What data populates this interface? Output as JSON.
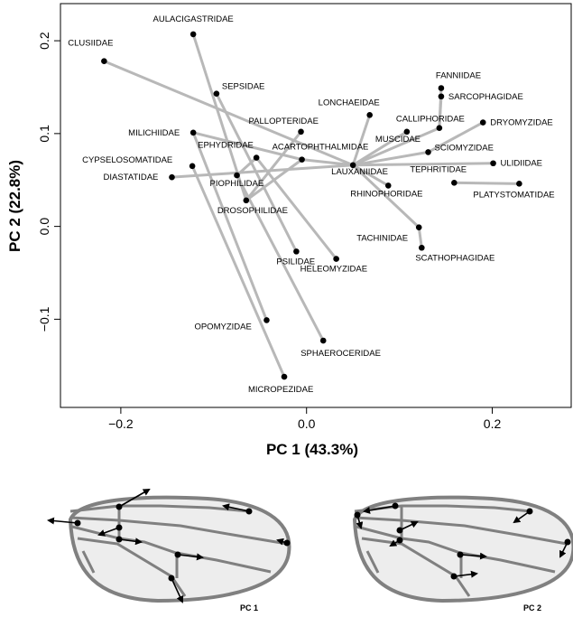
{
  "chart_data": {
    "type": "scatter",
    "title": "",
    "xlabel": "PC 1 (43.3%)",
    "ylabel": "PC 2 (22.8%)",
    "xlim": [
      -0.265,
      0.285
    ],
    "ylim": [
      -0.195,
      0.24
    ],
    "xticks": [
      -0.2,
      0.0,
      0.2
    ],
    "xtick_labels": [
      "−0.2",
      "0.0",
      "0.2"
    ],
    "yticks": [
      -0.1,
      0.0,
      0.1,
      0.2
    ],
    "ytick_labels": [
      "−0.1",
      "0.0",
      "0.1",
      "0.2"
    ],
    "grid": false,
    "points": [
      {
        "label": "CLUSIIDAE",
        "x": -0.218,
        "y": 0.178
      },
      {
        "label": "AULACIGASTRIDAE",
        "x": -0.122,
        "y": 0.207
      },
      {
        "label": "SEPSIDAE",
        "x": -0.097,
        "y": 0.143
      },
      {
        "label": "MILICHIIDAE",
        "x": -0.122,
        "y": 0.101
      },
      {
        "label": "CYPSELOSOMATIDAE",
        "x": -0.123,
        "y": 0.065
      },
      {
        "label": "DIASTATIDAE",
        "x": -0.145,
        "y": 0.053
      },
      {
        "label": "EPHYDRIDAE",
        "x": -0.054,
        "y": 0.074
      },
      {
        "label": "ACARTOPHTHALMIDAE",
        "x": -0.005,
        "y": 0.072
      },
      {
        "label": "PIOPHILIDAE",
        "x": -0.075,
        "y": 0.055
      },
      {
        "label": "PALLOPTERIDAE",
        "x": -0.006,
        "y": 0.102
      },
      {
        "label": "DROSOPHILIDAE",
        "x": -0.065,
        "y": 0.028
      },
      {
        "label": "PSILIDAE",
        "x": -0.011,
        "y": -0.027
      },
      {
        "label": "HELEOMYZIDAE",
        "x": 0.032,
        "y": -0.035
      },
      {
        "label": "LONCHAEIDAE",
        "x": 0.068,
        "y": 0.12
      },
      {
        "label": "LAUXANIIDAE",
        "x": 0.05,
        "y": 0.066
      },
      {
        "label": "MUSCIDAE",
        "x": 0.108,
        "y": 0.102
      },
      {
        "label": "CALLIPHORIDAE",
        "x": 0.143,
        "y": 0.106
      },
      {
        "label": "FANNIIDAE",
        "x": 0.145,
        "y": 0.149
      },
      {
        "label": "SARCOPHAGIDAE",
        "x": 0.145,
        "y": 0.14
      },
      {
        "label": "DRYOMYZIDAE",
        "x": 0.19,
        "y": 0.112
      },
      {
        "label": "SCIOMYZIDAE",
        "x": 0.131,
        "y": 0.08
      },
      {
        "label": "ULIDIIDAE",
        "x": 0.201,
        "y": 0.068
      },
      {
        "label": "TEPHRITIDAE",
        "x": 0.159,
        "y": 0.047
      },
      {
        "label": "PLATYSTOMATIDAE",
        "x": 0.229,
        "y": 0.046
      },
      {
        "label": "RHINOPHORIDAE",
        "x": 0.088,
        "y": 0.044
      },
      {
        "label": "TACHINIDAE",
        "x": 0.121,
        "y": -0.001
      },
      {
        "label": "SCATHOPHAGIDAE",
        "x": 0.124,
        "y": -0.023
      },
      {
        "label": "OPOMYZIDAE",
        "x": -0.043,
        "y": -0.101
      },
      {
        "label": "SPHAEROCERIDAE",
        "x": 0.018,
        "y": -0.123
      },
      {
        "label": "MICROPEZIDAE",
        "x": -0.024,
        "y": -0.162
      }
    ],
    "edges": [
      [
        "CLUSIIDAE",
        "LAUXANIIDAE"
      ],
      [
        "AULACIGASTRIDAE",
        "DROSOPHILIDAE"
      ],
      [
        "SEPSIDAE",
        "PSILIDAE"
      ],
      [
        "MILICHIIDAE",
        "ACARTOPHTHALMIDAE"
      ],
      [
        "MILICHIIDAE",
        "OPOMYZIDAE"
      ],
      [
        "CYPSELOSOMATIDAE",
        "MICROPEZIDAE"
      ],
      [
        "DIASTATIDAE",
        "LAUXANIIDAE"
      ],
      [
        "EPHYDRIDAE",
        "HELEOMYZIDAE"
      ],
      [
        "EPHYDRIDAE",
        "PIOPHILIDAE"
      ],
      [
        "PIOPHILIDAE",
        "SPHAEROCERIDAE"
      ],
      [
        "ACARTOPHTHALMIDAE",
        "LAUXANIIDAE"
      ],
      [
        "PALLOPTERIDAE",
        "DROSOPHILIDAE"
      ],
      [
        "LONCHAEIDAE",
        "LAUXANIIDAE"
      ],
      [
        "LAUXANIIDAE",
        "MUSCIDAE"
      ],
      [
        "LAUXANIIDAE",
        "CALLIPHORIDAE"
      ],
      [
        "LAUXANIIDAE",
        "SCIOMYZIDAE"
      ],
      [
        "LAUXANIIDAE",
        "ULIDIIDAE"
      ],
      [
        "LAUXANIIDAE",
        "RHINOPHORIDAE"
      ],
      [
        "LAUXANIIDAE",
        "TACHINIDAE"
      ],
      [
        "CALLIPHORIDAE",
        "FANNIIDAE"
      ],
      [
        "CALLIPHORIDAE",
        "SARCOPHAGIDAE"
      ],
      [
        "SCIOMYZIDAE",
        "DRYOMYZIDAE"
      ],
      [
        "TEPHRITIDAE",
        "PLATYSTOMATIDAE"
      ],
      [
        "TACHINIDAE",
        "SCATHOPHAGIDAE"
      ],
      [
        "DROSOPHILIDAE",
        "ACARTOPHTHALMIDAE"
      ]
    ]
  },
  "wings": [
    {
      "caption": "PC 1"
    },
    {
      "caption": "PC 2"
    }
  ]
}
